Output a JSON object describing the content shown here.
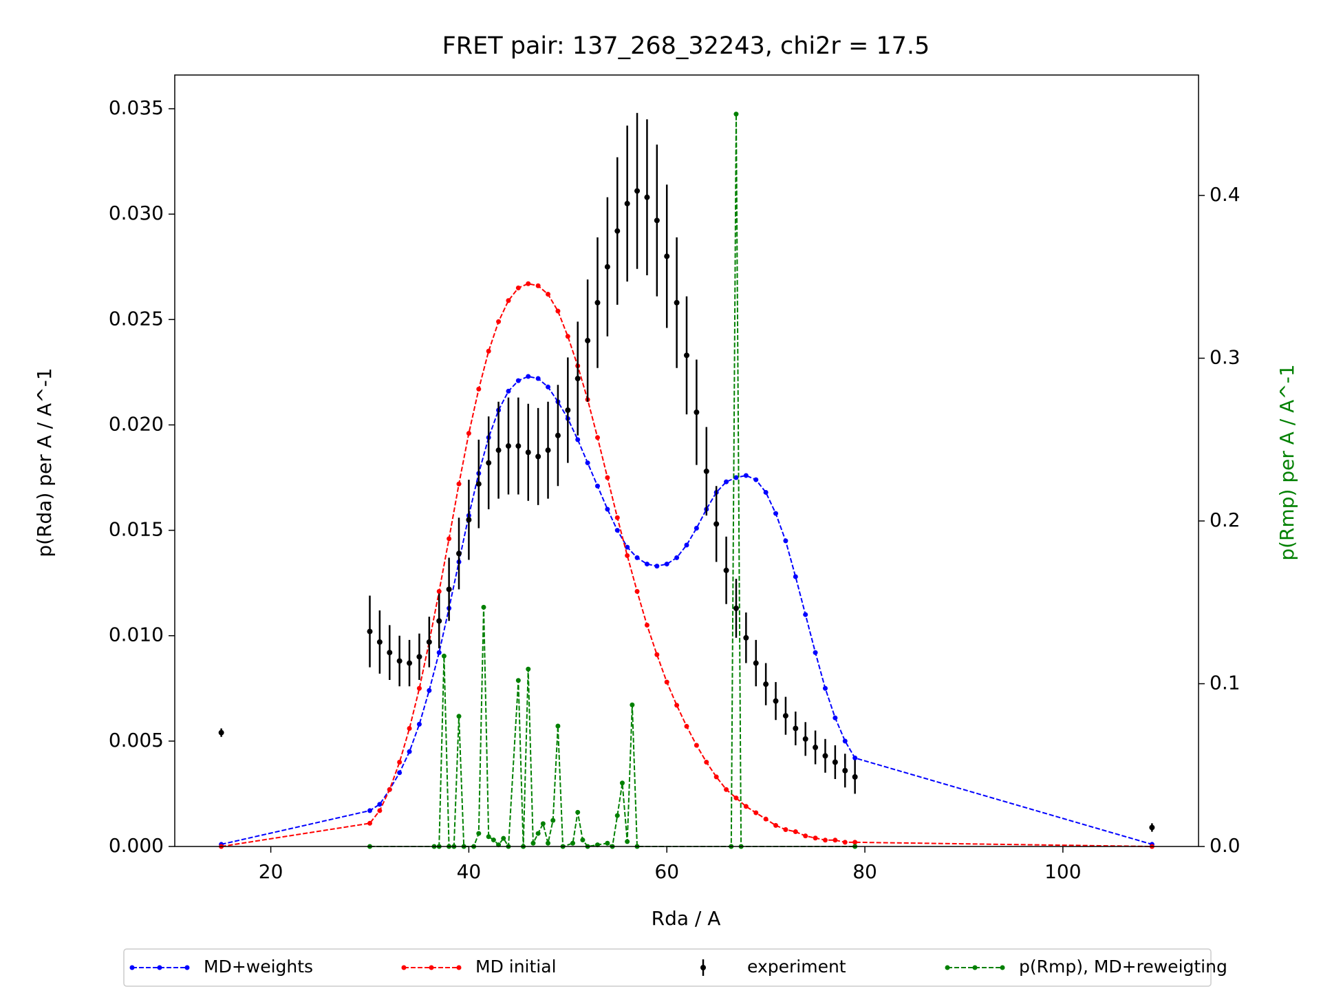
{
  "chart_data": {
    "type": "line",
    "title": "FRET pair: 137_268_32243, chi2r = 17.5",
    "x_label": "Rda / A",
    "y_label": "p(Rda) per A / A^-1",
    "y2_label": "p(Rmp) per A / A^-1",
    "y2_label_color": "green",
    "x": [
      15,
      30,
      31,
      32,
      33,
      34,
      35,
      36,
      37,
      38,
      39,
      40,
      41,
      42,
      43,
      44,
      45,
      46,
      47,
      48,
      49,
      50,
      51,
      52,
      53,
      54,
      55,
      56,
      57,
      58,
      59,
      60,
      61,
      62,
      63,
      64,
      65,
      66,
      67,
      68,
      69,
      70,
      71,
      72,
      73,
      74,
      75,
      76,
      77,
      78,
      79,
      109
    ],
    "series": [
      {
        "name": "MD+weights",
        "color": "blue",
        "style": "dashed",
        "values": [
          0.0001,
          0.0017,
          0.002,
          0.0027,
          0.0035,
          0.0045,
          0.0058,
          0.0074,
          0.0092,
          0.0113,
          0.0135,
          0.0157,
          0.0177,
          0.0194,
          0.0207,
          0.0216,
          0.0221,
          0.0223,
          0.0222,
          0.0218,
          0.0211,
          0.0203,
          0.0193,
          0.0182,
          0.0171,
          0.016,
          0.015,
          0.0142,
          0.0137,
          0.0134,
          0.0133,
          0.0134,
          0.0137,
          0.0143,
          0.0151,
          0.016,
          0.0168,
          0.0173,
          0.0175,
          0.0176,
          0.0174,
          0.0168,
          0.0158,
          0.0145,
          0.0128,
          0.011,
          0.0092,
          0.0075,
          0.0061,
          0.005,
          0.0042,
          0.0001
        ]
      },
      {
        "name": "MD initial",
        "color": "red",
        "style": "dashed",
        "values": [
          0.0,
          0.0011,
          0.0017,
          0.0027,
          0.004,
          0.0056,
          0.0075,
          0.0097,
          0.0121,
          0.0146,
          0.0172,
          0.0196,
          0.0217,
          0.0235,
          0.0249,
          0.0259,
          0.0265,
          0.0267,
          0.0266,
          0.0262,
          0.0254,
          0.0242,
          0.0228,
          0.0212,
          0.0194,
          0.0175,
          0.0156,
          0.0138,
          0.0121,
          0.0105,
          0.0091,
          0.0078,
          0.0067,
          0.0057,
          0.0048,
          0.004,
          0.0033,
          0.0027,
          0.0023,
          0.0019,
          0.0016,
          0.0013,
          0.001,
          0.0008,
          0.0007,
          0.0005,
          0.0004,
          0.0003,
          0.0003,
          0.0002,
          0.0002,
          0.0
        ]
      },
      {
        "name": "experiment",
        "color": "black",
        "style": "errorbar",
        "values": [
          0.0054,
          0.0102,
          0.0097,
          0.0092,
          0.0088,
          0.0087,
          0.009,
          0.0097,
          0.0107,
          0.0122,
          0.0139,
          0.0155,
          0.0172,
          0.0182,
          0.0188,
          0.019,
          0.019,
          0.0187,
          0.0185,
          0.0188,
          0.0195,
          0.0207,
          0.0222,
          0.024,
          0.0258,
          0.0275,
          0.0292,
          0.0305,
          0.0311,
          0.0308,
          0.0297,
          0.028,
          0.0258,
          0.0233,
          0.0206,
          0.0178,
          0.0153,
          0.0131,
          0.0113,
          0.0099,
          0.0087,
          0.0077,
          0.0069,
          0.0062,
          0.0056,
          0.0051,
          0.0047,
          0.0043,
          0.004,
          0.0036,
          0.0033,
          0.0009
        ],
        "errors": [
          0.0002,
          0.0017,
          0.0015,
          0.0013,
          0.0012,
          0.0011,
          0.0011,
          0.0012,
          0.0013,
          0.0015,
          0.0017,
          0.0019,
          0.0021,
          0.0022,
          0.0023,
          0.0023,
          0.0023,
          0.0023,
          0.0023,
          0.0023,
          0.0024,
          0.0025,
          0.0027,
          0.0029,
          0.0031,
          0.0033,
          0.0035,
          0.0037,
          0.0037,
          0.0037,
          0.0036,
          0.0034,
          0.0031,
          0.0028,
          0.0025,
          0.0021,
          0.0018,
          0.0016,
          0.0014,
          0.0012,
          0.0011,
          0.001,
          0.0009,
          0.0009,
          0.0008,
          0.0008,
          0.0008,
          0.0008,
          0.0008,
          0.0008,
          0.0008,
          0.0002
        ]
      },
      {
        "name": "p(Rmp), MD+reweigting",
        "color": "green",
        "style": "dashed",
        "axis": "y2",
        "x": [
          30,
          36.5,
          37,
          37.5,
          38,
          38.5,
          39,
          39.5,
          40.5,
          41,
          41.5,
          42,
          42.5,
          43,
          43.5,
          44,
          45,
          45.5,
          46,
          46.5,
          47,
          47.5,
          48,
          48.5,
          49,
          49.5,
          50.5,
          51,
          51.5,
          52,
          53,
          54,
          54.5,
          55,
          55.5,
          56,
          56.5,
          57,
          66.5,
          67,
          67.5,
          79
        ],
        "values": [
          0,
          0,
          0,
          0.117,
          0,
          0,
          0.08,
          0,
          0,
          0.008,
          0.147,
          0.006,
          0.004,
          0.001,
          0.005,
          0,
          0.102,
          0,
          0.109,
          0.002,
          0.008,
          0.014,
          0.002,
          0.016,
          0.074,
          0,
          0.002,
          0.021,
          0.004,
          0,
          0.001,
          0.002,
          0,
          0.019,
          0.039,
          0.003,
          0.087,
          0,
          0,
          0.45,
          0,
          0
        ]
      }
    ],
    "xlim": [
      10.3,
      113.7
    ],
    "ylim": [
      0,
      0.0366
    ],
    "y2lim": [
      0,
      0.474
    ],
    "xticks": [
      20,
      40,
      60,
      80,
      100
    ],
    "yticks": [
      {
        "value": 0,
        "label": "0.000"
      },
      {
        "value": 0.005,
        "label": "0.005"
      },
      {
        "value": 0.01,
        "label": "0.010"
      },
      {
        "value": 0.015,
        "label": "0.015"
      },
      {
        "value": 0.02,
        "label": "0.020"
      },
      {
        "value": 0.025,
        "label": "0.025"
      },
      {
        "value": 0.03,
        "label": "0.030"
      },
      {
        "value": 0.035,
        "label": "0.035"
      }
    ],
    "y2ticks": [
      {
        "value": 0,
        "label": "0.0"
      },
      0.1,
      0.2,
      0.3,
      0.4
    ],
    "grid": false,
    "legend": "bottom"
  }
}
